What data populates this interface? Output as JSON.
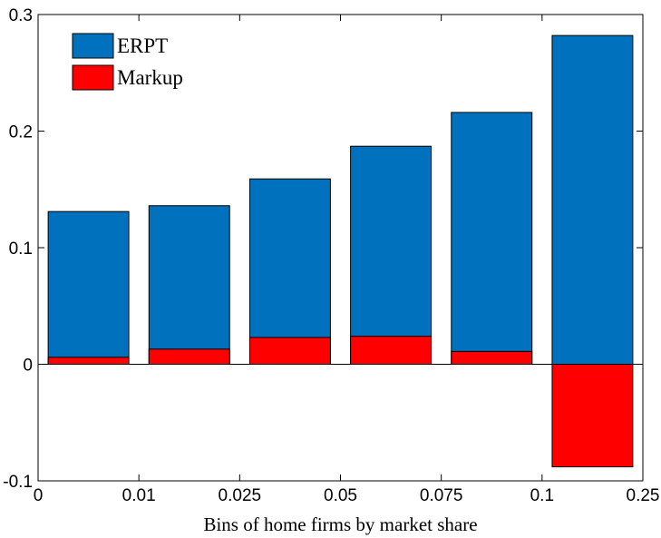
{
  "chart_data": {
    "type": "bar",
    "title": "",
    "xlabel": "Bins of home firms by market share",
    "ylabel": "",
    "ylim": [
      -0.1,
      0.3
    ],
    "yticks": [
      -0.1,
      0,
      0.1,
      0.2,
      0.3
    ],
    "ytick_labels": [
      "-0.1",
      "0",
      "0.1",
      "0.2",
      "0.3"
    ],
    "xtick_labels": [
      "0",
      "0.01",
      "0.025",
      "0.05",
      "0.075",
      "0.1",
      "0.25"
    ],
    "categories": [
      "0–0.01",
      "0.01–0.025",
      "0.025–0.05",
      "0.05–0.075",
      "0.075–0.1",
      "0.1–0.25"
    ],
    "series": [
      {
        "name": "ERPT",
        "color": "#0072bd",
        "values": [
          0.131,
          0.136,
          0.159,
          0.187,
          0.216,
          0.282
        ]
      },
      {
        "name": "Markup",
        "color": "#ff0000",
        "values": [
          0.006,
          0.013,
          0.023,
          0.024,
          0.011,
          -0.088
        ]
      }
    ],
    "legend_position": "top-left",
    "grid": false
  }
}
